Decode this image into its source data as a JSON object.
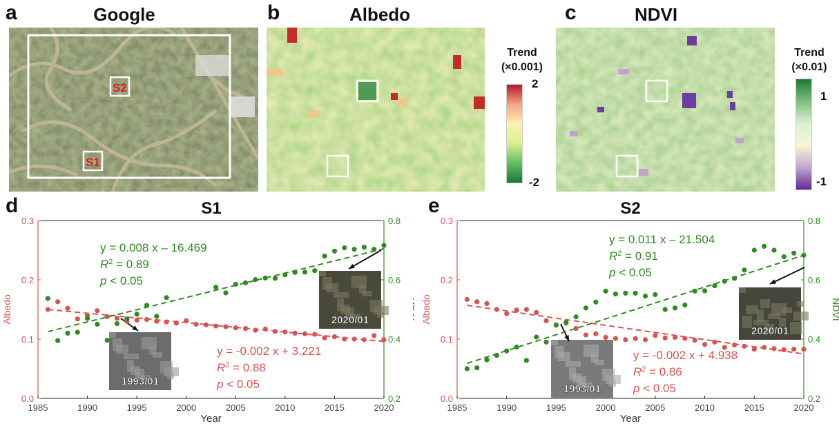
{
  "panels": {
    "a": {
      "letter": "a",
      "title": "Google",
      "site1": "S1",
      "site2": "S2"
    },
    "b": {
      "letter": "b",
      "title": "Albedo"
    },
    "c": {
      "letter": "c",
      "title": "NDVI"
    },
    "d": {
      "letter": "d"
    },
    "e": {
      "letter": "e"
    }
  },
  "colorbars": {
    "albedo": {
      "title_line1": "Trend",
      "title_line2": "(×0.001)",
      "max_label": "2",
      "min_label": "-2",
      "colors": [
        "#b2182b",
        "#f4a582",
        "#fdf1b0",
        "#d9ef8b",
        "#66bd63",
        "#1a7837"
      ]
    },
    "ndvi": {
      "title_line1": "Trend",
      "title_line2": "(×0.01)",
      "max_label": "1",
      "min_label": "-1",
      "colors": [
        "#1b7837",
        "#7fbf7b",
        "#d9f0d3",
        "#f7f7d4",
        "#c2a5cf",
        "#5e2a94"
      ]
    }
  },
  "colors": {
    "albedo": "#d9534f",
    "ndvi": "#2e8b1f",
    "albedo_dark": "#d65a45",
    "ndvi_dark": "#228b22"
  },
  "chart_data": [
    {
      "type": "scatter",
      "title": "S1",
      "xlabel": "Year",
      "ylabel_left": "Albedo",
      "ylabel_right": "NDVI",
      "xlim": [
        1985,
        2020
      ],
      "ylim_left": [
        0.0,
        0.3
      ],
      "ylim_right": [
        0.2,
        0.8
      ],
      "xticks": [
        "1985",
        "1990",
        "1995",
        "2000",
        "2005",
        "2010",
        "2015",
        "2020"
      ],
      "yticks_left": [
        "0.0",
        "0.1",
        "0.2",
        "0.3"
      ],
      "yticks_right": [
        "0.2",
        "0.4",
        "0.6",
        "0.8"
      ],
      "series": [
        {
          "name": "Albedo",
          "axis": "left",
          "x": [
            1986,
            1987,
            1988,
            1989,
            1990,
            1991,
            1992,
            1993,
            1994,
            1995,
            1996,
            1997,
            1998,
            1999,
            2000,
            2001,
            2002,
            2003,
            2004,
            2005,
            2006,
            2007,
            2008,
            2009,
            2010,
            2011,
            2012,
            2013,
            2014,
            2015,
            2016,
            2017,
            2018,
            2019,
            2020
          ],
          "y": [
            0.15,
            0.163,
            0.152,
            0.134,
            0.14,
            0.148,
            0.138,
            0.135,
            0.13,
            0.132,
            0.133,
            0.13,
            0.129,
            0.127,
            0.131,
            0.125,
            0.124,
            0.122,
            0.121,
            0.119,
            0.118,
            0.115,
            0.117,
            0.113,
            0.112,
            0.11,
            0.109,
            0.108,
            0.102,
            0.104,
            0.1,
            0.1,
            0.099,
            0.106,
            0.099
          ],
          "trend": {
            "equation": "y = -0.002 x + 3.221",
            "r2_value": "= 0.88",
            "p": "< 0.05",
            "y_start": 0.15,
            "y_end": 0.096
          }
        },
        {
          "name": "NDVI",
          "axis": "right",
          "x": [
            1986,
            1987,
            1988,
            1989,
            1990,
            1991,
            1992,
            1993,
            1994,
            1995,
            1996,
            1997,
            1998,
            2003,
            2004,
            2005,
            2006,
            2007,
            2008,
            2009,
            2010,
            2011,
            2012,
            2013,
            2014,
            2015,
            2016,
            2017,
            2018,
            2019,
            2020
          ],
          "y": [
            0.537,
            0.395,
            0.42,
            0.423,
            0.47,
            0.45,
            0.396,
            0.452,
            0.468,
            0.484,
            0.514,
            0.477,
            0.54,
            0.575,
            0.556,
            0.585,
            0.59,
            0.601,
            0.606,
            0.605,
            0.617,
            0.625,
            0.626,
            0.631,
            0.68,
            0.697,
            0.708,
            0.703,
            0.71,
            0.703,
            0.716
          ],
          "trend": {
            "equation": "y = 0.008 x – 16.469",
            "r2_value": "= 0.89",
            "p": "< 0.05",
            "y_start": 0.425,
            "y_end": 0.705
          }
        }
      ],
      "insets": [
        {
          "label": "1993/01"
        },
        {
          "label": "2020/01"
        }
      ]
    },
    {
      "type": "scatter",
      "title": "S2",
      "xlabel": "Year",
      "ylabel_left": "Albedo",
      "ylabel_right": "NDVI",
      "xlim": [
        1985,
        2020
      ],
      "ylim_left": [
        0.0,
        0.3
      ],
      "ylim_right": [
        0.2,
        0.8
      ],
      "xticks": [
        "1985",
        "1990",
        "1995",
        "2000",
        "2005",
        "2010",
        "2015",
        "2020"
      ],
      "yticks_left": [
        "0.0",
        "0.1",
        "0.2",
        "0.3"
      ],
      "yticks_right": [
        "0.2",
        "0.4",
        "0.6",
        "0.8"
      ],
      "series": [
        {
          "name": "Albedo",
          "axis": "left",
          "x": [
            1986,
            1987,
            1988,
            1989,
            1990,
            1991,
            1992,
            1993,
            1994,
            1995,
            1996,
            1997,
            1998,
            1999,
            2000,
            2001,
            2002,
            2003,
            2004,
            2005,
            2006,
            2007,
            2008,
            2009,
            2010,
            2011,
            2012,
            2013,
            2014,
            2015,
            2016,
            2017,
            2018,
            2019,
            2020
          ],
          "y": [
            0.167,
            0.163,
            0.16,
            0.15,
            0.143,
            0.149,
            0.15,
            0.145,
            0.131,
            0.124,
            0.127,
            0.118,
            0.107,
            0.109,
            0.103,
            0.101,
            0.099,
            0.101,
            0.099,
            0.106,
            0.102,
            0.103,
            0.101,
            0.098,
            0.091,
            0.095,
            0.086,
            0.09,
            0.088,
            0.083,
            0.086,
            0.084,
            0.082,
            0.083,
            0.083
          ],
          "trend": {
            "equation": "y = -0.002 x + 4.938",
            "r2_value": "= 0.86",
            "p": "< 0.05",
            "y_start": 0.157,
            "y_end": 0.075
          }
        },
        {
          "name": "NDVI",
          "axis": "right",
          "x": [
            1986,
            1987,
            1988,
            1989,
            1990,
            1991,
            1992,
            1993,
            1994,
            1995,
            1996,
            1997,
            1998,
            1999,
            2000,
            2001,
            2002,
            2003,
            2004,
            2005,
            2006,
            2007,
            2008,
            2009,
            2010,
            2011,
            2012,
            2013,
            2014,
            2015,
            2016,
            2017,
            2018,
            2019,
            2020
          ],
          "y": [
            0.3,
            0.303,
            0.33,
            0.345,
            0.36,
            0.373,
            0.328,
            0.407,
            0.39,
            0.447,
            0.457,
            0.475,
            0.505,
            0.525,
            0.562,
            0.552,
            0.555,
            0.555,
            0.545,
            0.55,
            0.5,
            0.505,
            0.515,
            0.562,
            0.563,
            0.58,
            0.595,
            0.605,
            0.633,
            0.7,
            0.713,
            0.7,
            0.678,
            0.69,
            0.683
          ],
          "trend": {
            "equation": "y = 0.011 x – 21.504",
            "r2_value": "= 0.91",
            "p": "< 0.05",
            "y_start": 0.318,
            "y_end": 0.683
          }
        }
      ],
      "insets": [
        {
          "label": "1993/01"
        },
        {
          "label": "2020/01"
        }
      ]
    }
  ]
}
